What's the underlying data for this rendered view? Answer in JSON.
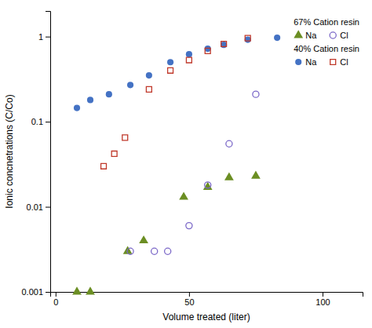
{
  "chart_data": {
    "type": "scatter",
    "xlabel": "Volume treated (liter)",
    "ylabel": "Ionic concnetrations (C/Co)",
    "log": "y",
    "grid": false,
    "legend": "upper right",
    "xlim": [
      -2,
      115
    ],
    "ylim": [
      0.001,
      2.0
    ],
    "xticks": [
      0,
      50,
      100
    ],
    "yticks": [
      0.001,
      0.01,
      0.1,
      1
    ],
    "series": [
      {
        "name": "Na",
        "group": "40% Cation resin",
        "color": "#4472c4",
        "marker": "circle",
        "x": [
          8,
          13,
          20,
          28,
          35,
          43,
          50,
          57,
          63,
          72,
          83
        ],
        "values": [
          0.145,
          0.18,
          0.21,
          0.27,
          0.35,
          0.5,
          0.62,
          0.72,
          0.8,
          0.92,
          0.97
        ]
      },
      {
        "name": "Cl",
        "group": "40% Cation resin",
        "color": "#c0392b",
        "marker": "square-open",
        "x": [
          18,
          22,
          26,
          35,
          43,
          50,
          57,
          63,
          72
        ],
        "values": [
          0.03,
          0.042,
          0.065,
          0.24,
          0.4,
          0.53,
          0.68,
          0.82,
          0.96
        ]
      },
      {
        "name": "Na",
        "group": "67% Cation resin",
        "color": "#6b8e23",
        "marker": "triangle",
        "x": [
          8,
          13,
          27,
          33,
          48,
          57,
          65,
          75
        ],
        "values": [
          0.001,
          0.001,
          0.003,
          0.004,
          0.013,
          0.017,
          0.022,
          0.023
        ]
      },
      {
        "name": "Cl",
        "group": "67% Cation resin",
        "color": "#7b68c8",
        "marker": "circle-open",
        "x": [
          28,
          37,
          42,
          50,
          57,
          65,
          75
        ],
        "values": [
          0.003,
          0.003,
          0.003,
          0.006,
          0.018,
          0.055,
          0.21
        ]
      }
    ]
  }
}
